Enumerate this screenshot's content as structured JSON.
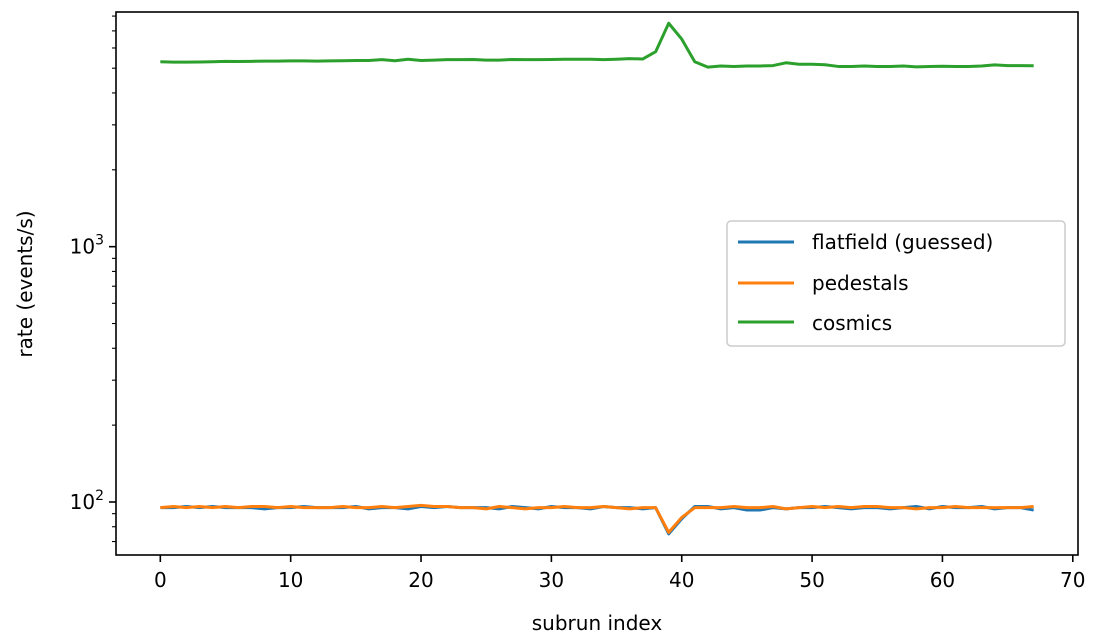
{
  "chart_data": {
    "type": "line",
    "xlabel": "subrun index",
    "ylabel": "rate (events/s)",
    "yscale": "log",
    "xlim": [
      -3.4,
      70.4
    ],
    "ylim": [
      62,
      8300
    ],
    "grid": false,
    "legend_position": "center-right",
    "x_ticks": [
      0,
      10,
      20,
      30,
      40,
      50,
      60,
      70
    ],
    "y_ticks": [
      {
        "value": 100,
        "base": "10",
        "exp": "2"
      },
      {
        "value": 1000,
        "base": "10",
        "exp": "3"
      }
    ],
    "x": [
      0,
      1,
      2,
      3,
      4,
      5,
      6,
      7,
      8,
      9,
      10,
      11,
      12,
      13,
      14,
      15,
      16,
      17,
      18,
      19,
      20,
      21,
      22,
      23,
      24,
      25,
      26,
      27,
      28,
      29,
      30,
      31,
      32,
      33,
      34,
      35,
      36,
      37,
      38,
      39,
      40,
      41,
      42,
      43,
      44,
      45,
      46,
      47,
      48,
      49,
      50,
      51,
      52,
      53,
      54,
      55,
      56,
      57,
      58,
      59,
      60,
      61,
      62,
      63,
      64,
      65,
      66,
      67
    ],
    "series": [
      {
        "name": "flatfield (guessed)",
        "color": "#1f77b4",
        "values": [
          95,
          95,
          96,
          95,
          96,
          95,
          95,
          95,
          94,
          95,
          95,
          96,
          95,
          95,
          95,
          96,
          94,
          95,
          95,
          94,
          96,
          95,
          96,
          95,
          95,
          95,
          94,
          96,
          95,
          94,
          96,
          95,
          95,
          94,
          96,
          95,
          95,
          94,
          95,
          75,
          86,
          96,
          96,
          94,
          95,
          93,
          93,
          95,
          94,
          95,
          95,
          96,
          95,
          94,
          95,
          95,
          94,
          95,
          96,
          94,
          96,
          95,
          95,
          96,
          94,
          95,
          95,
          93
        ]
      },
      {
        "name": "pedestals",
        "color": "#ff7f0e",
        "values": [
          95,
          96,
          95,
          96,
          95,
          96,
          95,
          96,
          96,
          95,
          96,
          95,
          95,
          95,
          96,
          95,
          95,
          96,
          95,
          96,
          97,
          96,
          96,
          95,
          95,
          94,
          96,
          95,
          94,
          95,
          95,
          96,
          95,
          95,
          96,
          95,
          94,
          95,
          95,
          76,
          87,
          95,
          95,
          95,
          96,
          95,
          95,
          96,
          94,
          95,
          96,
          95,
          96,
          95,
          96,
          96,
          95,
          95,
          94,
          95,
          95,
          96,
          95,
          95,
          95,
          95,
          95,
          96
        ]
      },
      {
        "name": "cosmics",
        "color": "#2ca02c",
        "values": [
          5300,
          5280,
          5280,
          5290,
          5300,
          5320,
          5310,
          5320,
          5330,
          5330,
          5340,
          5340,
          5330,
          5340,
          5350,
          5360,
          5360,
          5400,
          5350,
          5420,
          5360,
          5380,
          5400,
          5400,
          5410,
          5380,
          5380,
          5410,
          5400,
          5400,
          5410,
          5420,
          5420,
          5420,
          5400,
          5420,
          5450,
          5430,
          5800,
          7500,
          6500,
          5300,
          5050,
          5100,
          5080,
          5100,
          5100,
          5120,
          5250,
          5180,
          5180,
          5160,
          5080,
          5080,
          5100,
          5080,
          5080,
          5100,
          5060,
          5080,
          5090,
          5080,
          5080,
          5100,
          5150,
          5120,
          5120,
          5110
        ]
      }
    ]
  }
}
